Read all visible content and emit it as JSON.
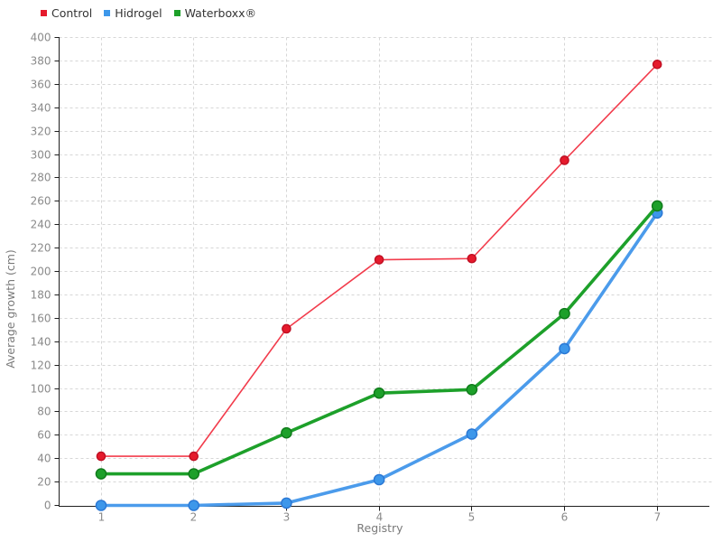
{
  "chart_data": {
    "type": "line",
    "title": "",
    "xlabel": "Registry",
    "ylabel": "Average growth (cm)",
    "x": [
      1,
      2,
      3,
      4,
      5,
      6,
      7
    ],
    "x_ticks": [
      1,
      2,
      3,
      4,
      5,
      6,
      7
    ],
    "y_ticks": [
      0,
      20,
      40,
      60,
      80,
      100,
      120,
      140,
      160,
      180,
      200,
      220,
      240,
      260,
      280,
      300,
      320,
      340,
      360,
      380,
      400
    ],
    "ylim": [
      0,
      400
    ],
    "xlim": [
      1,
      7
    ],
    "grid": "dashed",
    "legend_position": "top-left",
    "background": "#ffffff",
    "grid_color": "#d6d6d6",
    "axis_color": "#1f1f1f",
    "tick_label_color": "#8a8a8a",
    "axis_title_color": "#7a7a7a",
    "legend_text_color": "#333333",
    "series": [
      {
        "name": "Control",
        "line_color": "#f23c4c",
        "marker_color": "#e51a2c",
        "marker_edge": "#bf0e22",
        "line_width": 1.6,
        "marker_radius": 4.6,
        "values": [
          42,
          42,
          151,
          210,
          211,
          295,
          377
        ]
      },
      {
        "name": "Hidrogel",
        "line_color": "#4b9beb",
        "marker_color": "#3d97ea",
        "marker_edge": "#2a77d4",
        "line_width": 3.6,
        "marker_radius": 5.6,
        "values": [
          0,
          0,
          2,
          22,
          61,
          134,
          250
        ]
      },
      {
        "name": "Waterboxx®",
        "line_color": "#1da02a",
        "marker_color": "#1da02a",
        "marker_edge": "#0f7a1a",
        "line_width": 3.6,
        "marker_radius": 5.6,
        "values": [
          27,
          27,
          62,
          96,
          99,
          164,
          256
        ]
      }
    ]
  }
}
